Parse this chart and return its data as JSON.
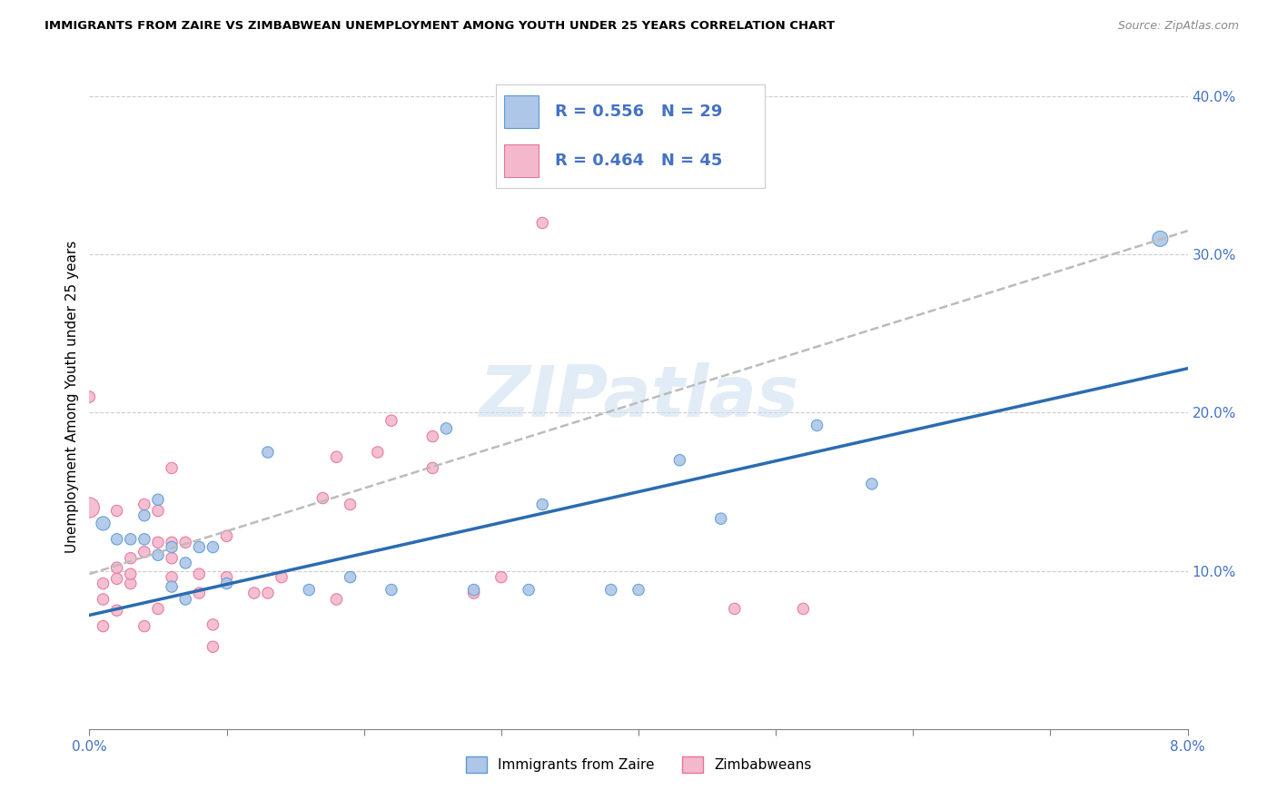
{
  "title": "IMMIGRANTS FROM ZAIRE VS ZIMBABWEAN UNEMPLOYMENT AMONG YOUTH UNDER 25 YEARS CORRELATION CHART",
  "source": "Source: ZipAtlas.com",
  "ylabel": "Unemployment Among Youth under 25 years",
  "xlim": [
    0.0,
    0.08
  ],
  "ylim": [
    0.0,
    0.42
  ],
  "xticks": [
    0.0,
    0.01,
    0.02,
    0.03,
    0.04,
    0.05,
    0.06,
    0.07,
    0.08
  ],
  "xticklabels": [
    "0.0%",
    "",
    "",
    "",
    "",
    "",
    "",
    "",
    "8.0%"
  ],
  "yticks": [
    0.1,
    0.2,
    0.3,
    0.4
  ],
  "yticklabels": [
    "10.0%",
    "20.0%",
    "30.0%",
    "40.0%"
  ],
  "blue_fill": "#aec6e8",
  "pink_fill": "#f4b8cc",
  "blue_edge": "#5b9bd5",
  "pink_edge": "#e57399",
  "blue_line_color": "#2b6cb0",
  "pink_trend_color": "#bbbbbb",
  "tick_color": "#4472c4",
  "grid_color": "#cccccc",
  "watermark": "ZIPatlas",
  "legend_text_color": "#4472c4",
  "blue_scatter_x": [
    0.001,
    0.002,
    0.003,
    0.004,
    0.004,
    0.005,
    0.005,
    0.006,
    0.006,
    0.007,
    0.007,
    0.008,
    0.009,
    0.01,
    0.013,
    0.016,
    0.019,
    0.022,
    0.026,
    0.028,
    0.032,
    0.033,
    0.038,
    0.04,
    0.043,
    0.046,
    0.053,
    0.057,
    0.078
  ],
  "blue_scatter_y": [
    0.13,
    0.12,
    0.12,
    0.12,
    0.135,
    0.11,
    0.145,
    0.09,
    0.115,
    0.082,
    0.105,
    0.115,
    0.115,
    0.092,
    0.175,
    0.088,
    0.096,
    0.088,
    0.19,
    0.088,
    0.088,
    0.142,
    0.088,
    0.088,
    0.17,
    0.133,
    0.192,
    0.155,
    0.31
  ],
  "blue_marker_sizes": [
    120,
    80,
    80,
    80,
    80,
    80,
    80,
    80,
    80,
    80,
    80,
    80,
    80,
    80,
    80,
    80,
    80,
    80,
    80,
    80,
    80,
    80,
    80,
    80,
    80,
    80,
    80,
    80,
    150
  ],
  "pink_scatter_x": [
    0.0,
    0.0,
    0.001,
    0.001,
    0.001,
    0.002,
    0.002,
    0.002,
    0.002,
    0.003,
    0.003,
    0.003,
    0.004,
    0.004,
    0.004,
    0.005,
    0.005,
    0.005,
    0.006,
    0.006,
    0.006,
    0.006,
    0.007,
    0.008,
    0.008,
    0.009,
    0.009,
    0.01,
    0.01,
    0.012,
    0.013,
    0.014,
    0.017,
    0.018,
    0.018,
    0.019,
    0.021,
    0.022,
    0.025,
    0.025,
    0.028,
    0.03,
    0.033,
    0.047,
    0.052
  ],
  "pink_scatter_y": [
    0.14,
    0.21,
    0.065,
    0.082,
    0.092,
    0.075,
    0.095,
    0.102,
    0.138,
    0.092,
    0.098,
    0.108,
    0.065,
    0.112,
    0.142,
    0.076,
    0.118,
    0.138,
    0.096,
    0.108,
    0.118,
    0.165,
    0.118,
    0.086,
    0.098,
    0.052,
    0.066,
    0.096,
    0.122,
    0.086,
    0.086,
    0.096,
    0.146,
    0.172,
    0.082,
    0.142,
    0.175,
    0.195,
    0.165,
    0.185,
    0.086,
    0.096,
    0.32,
    0.076,
    0.076
  ],
  "pink_marker_sizes": [
    250,
    80,
    80,
    80,
    80,
    80,
    80,
    80,
    80,
    80,
    80,
    80,
    80,
    80,
    80,
    80,
    80,
    80,
    80,
    80,
    80,
    80,
    80,
    80,
    80,
    80,
    80,
    80,
    80,
    80,
    80,
    80,
    80,
    80,
    80,
    80,
    80,
    80,
    80,
    80,
    80,
    80,
    80,
    80,
    80
  ],
  "blue_trend_x": [
    0.0,
    0.08
  ],
  "blue_trend_y": [
    0.072,
    0.228
  ],
  "pink_trend_x": [
    0.0,
    0.08
  ],
  "pink_trend_y": [
    0.098,
    0.315
  ]
}
